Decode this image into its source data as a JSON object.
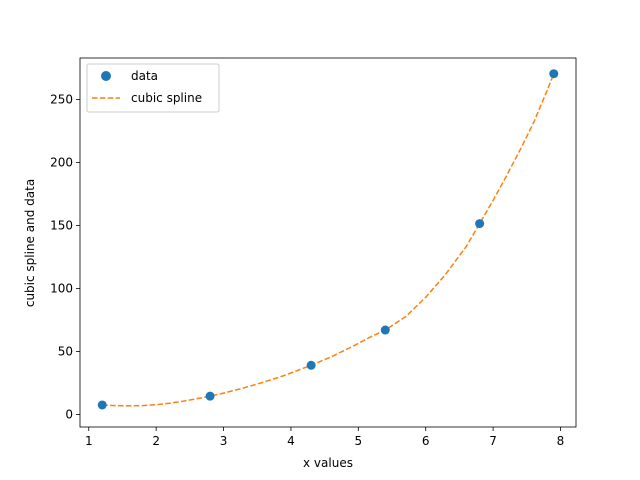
{
  "chart_data": {
    "type": "line",
    "xlabel": "x values",
    "ylabel": "cubic spline and data",
    "xlim": [
      0.87,
      8.23
    ],
    "ylim": [
      -10,
      283
    ],
    "xticks": [
      1,
      2,
      3,
      4,
      5,
      6,
      7,
      8
    ],
    "yticks": [
      0,
      50,
      100,
      150,
      200,
      250
    ],
    "grid": false,
    "legend_position": "top-left",
    "series": [
      {
        "name": "data",
        "kind": "scatter",
        "color": "#1f77b4",
        "x": [
          1.2,
          2.8,
          4.3,
          5.4,
          6.8,
          7.9
        ],
        "y": [
          7.5,
          14.5,
          39,
          67,
          151.5,
          270.5
        ]
      },
      {
        "name": "cubic spline",
        "kind": "line",
        "style": "dashed",
        "color": "#ff7f0e",
        "x": [
          1.2,
          1.4,
          1.6,
          1.8,
          2.0,
          2.2,
          2.4,
          2.6,
          2.8,
          3.0,
          3.3,
          3.6,
          3.9,
          4.3,
          4.6,
          4.9,
          5.2,
          5.4,
          5.7,
          6.0,
          6.3,
          6.6,
          6.8,
          7.0,
          7.2,
          7.4,
          7.6,
          7.8,
          7.9
        ],
        "y": [
          7.5,
          7.0,
          6.8,
          7.0,
          7.7,
          8.9,
          10.5,
          12.4,
          14.5,
          16.9,
          21.0,
          25.7,
          30.9,
          39.0,
          45.8,
          53.6,
          62.0,
          67.0,
          77.5,
          93.0,
          111.6,
          133.2,
          151.5,
          170.0,
          189.5,
          210.0,
          231.5,
          257.0,
          270.5
        ]
      }
    ]
  }
}
